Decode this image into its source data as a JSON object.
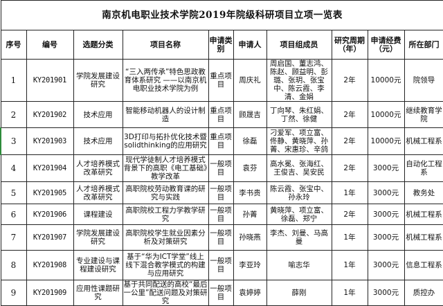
{
  "title": "南京机电职业技术学院2019年院级科研项目立项一览表",
  "headers": [
    "序号",
    "编号",
    "选题分类",
    "项目名称",
    "申请类别",
    "申请人",
    "项目组成员",
    "研究周期（年）",
    "申请经费（元）",
    "所在部门"
  ],
  "rows": [
    {
      "no": "1",
      "code": "KY201901",
      "category": "学院发展建设研究",
      "name": "“三入两传承”特色思政教育体系研究 ——以南京机电职业技术学院为例",
      "type": "重点项目",
      "applicant": "周庆礼",
      "members": "周启国、董志鸿、陈赵、顾益明、彭璐、张玥、张宝中、陈云霞、李清、金娟",
      "period": "2年",
      "funding": "10000元",
      "dept": "院领导"
    },
    {
      "no": "2",
      "code": "KY201902",
      "category": "技术应用",
      "name": "智能移动机器人的设计制造",
      "type": "重点项目",
      "applicant": "顾晟吉",
      "members": "丁向琴、朱红娟、丁然、徐健",
      "period": "2年",
      "funding": "10000元",
      "dept": "继续教育学院"
    },
    {
      "no": "3",
      "code": "KY201903",
      "category": "技术应用",
      "name": "3D打印与拓扑优化技术暨solidthinking的应用研究",
      "type": "重点项目",
      "applicant": "徐磊",
      "members": "刁爱军、项立富、佟静、黄晓萍、孙菁、宋惠珍、辛鸽",
      "period": "2年",
      "funding": "10000元",
      "dept": "机械工程系"
    },
    {
      "no": "4",
      "code": "KY201904",
      "category": "人才培养模式改革研究",
      "name": "现代学徒制人才培养模式背景下的高职《电工基础》教学改革",
      "type": "一般项目",
      "applicant": "袁芬",
      "members": "高水冕、张海红、王俊吉、吴安民",
      "period": "2年",
      "funding": "3000元",
      "dept": "自动化工程系"
    },
    {
      "no": "5",
      "code": "KY201905",
      "category": "人才培养模式改革研究",
      "name": "高职院校劳动教育课的研究与实践",
      "type": "一般项目",
      "applicant": "李书贵",
      "members": "陈云霞、张宝中、孙永玲",
      "period": "1年",
      "funding": "3000元",
      "dept": "教务处"
    },
    {
      "no": "6",
      "code": "KY201906",
      "category": "课程建设",
      "name": "高职院校工程力学教学研究",
      "type": "一般项目",
      "applicant": "孙菁",
      "members": "黄晓萍、项立富、徐磊、郑宁",
      "period": "2年",
      "funding": "3000元",
      "dept": "机械工程系"
    },
    {
      "no": "7",
      "code": "KY201907",
      "category": "学院发展建设研究",
      "name": "高职院校学生就业因素分析及对策研究",
      "type": "一般项目",
      "applicant": "孙晓燕",
      "members": "李杰、刘曼、马高曼",
      "period": "1年",
      "funding": "3000元",
      "dept": "机械工程系"
    },
    {
      "no": "8",
      "code": "KY201908",
      "category": "专业建设与课程建设研究",
      "name": "基于“华为ICT学堂”线上线下混合教学模式的构建与应用研究",
      "type": "一般项目",
      "applicant": "李亚玲",
      "members": "喻志华",
      "period": "1年",
      "funding": "3000元",
      "dept": "信息工程系"
    },
    {
      "no": "9",
      "code": "KY201909",
      "category": "应用性课题研究",
      "name": "基于共同配送的高校“最后一公里”配送问题及对策研究",
      "type": "一般项目",
      "applicant": "袁婷婷",
      "members": "薛刚",
      "period": "1年",
      "funding": "3000元",
      "dept": "质控办"
    }
  ]
}
